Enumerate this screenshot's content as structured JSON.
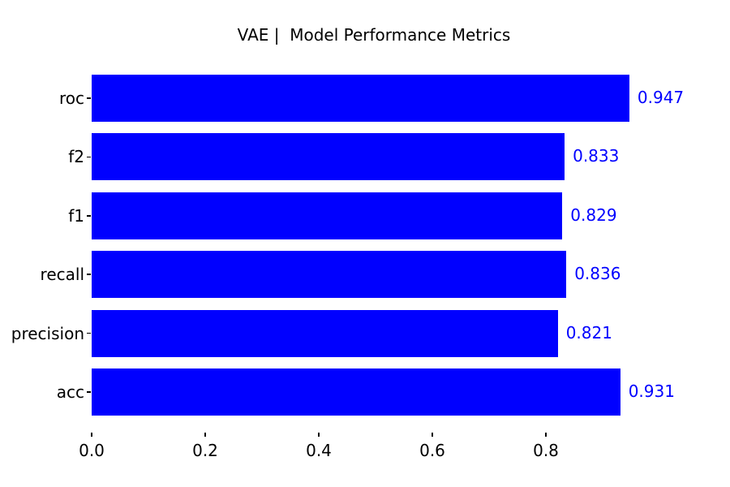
{
  "title": "VAE |  Model Performance Metrics",
  "colors": {
    "bar": "#0000ff",
    "value_label": "#0000ff",
    "tick_text": "#000000",
    "background": "#ffffff"
  },
  "chart_data": {
    "type": "bar",
    "orientation": "horizontal",
    "title": "VAE |  Model Performance Metrics",
    "xlabel": "",
    "ylabel": "",
    "categories": [
      "roc",
      "f2",
      "f1",
      "recall",
      "precision",
      "acc"
    ],
    "values": [
      0.947,
      0.833,
      0.829,
      0.836,
      0.821,
      0.931
    ],
    "value_labels": [
      "0.947",
      "0.833",
      "0.829",
      "0.836",
      "0.821",
      "0.931"
    ],
    "x_ticks": [
      {
        "value": 0.0,
        "label": "0.0"
      },
      {
        "value": 0.2,
        "label": "0.2"
      },
      {
        "value": 0.4,
        "label": "0.4"
      },
      {
        "value": 0.6,
        "label": "0.6"
      },
      {
        "value": 0.8,
        "label": "0.8"
      }
    ],
    "xlim": [
      0.0,
      0.994
    ],
    "grid": false,
    "legend": null,
    "spines_visible": false,
    "bar_color": "#0000ff",
    "value_label_color": "#0000ff"
  }
}
